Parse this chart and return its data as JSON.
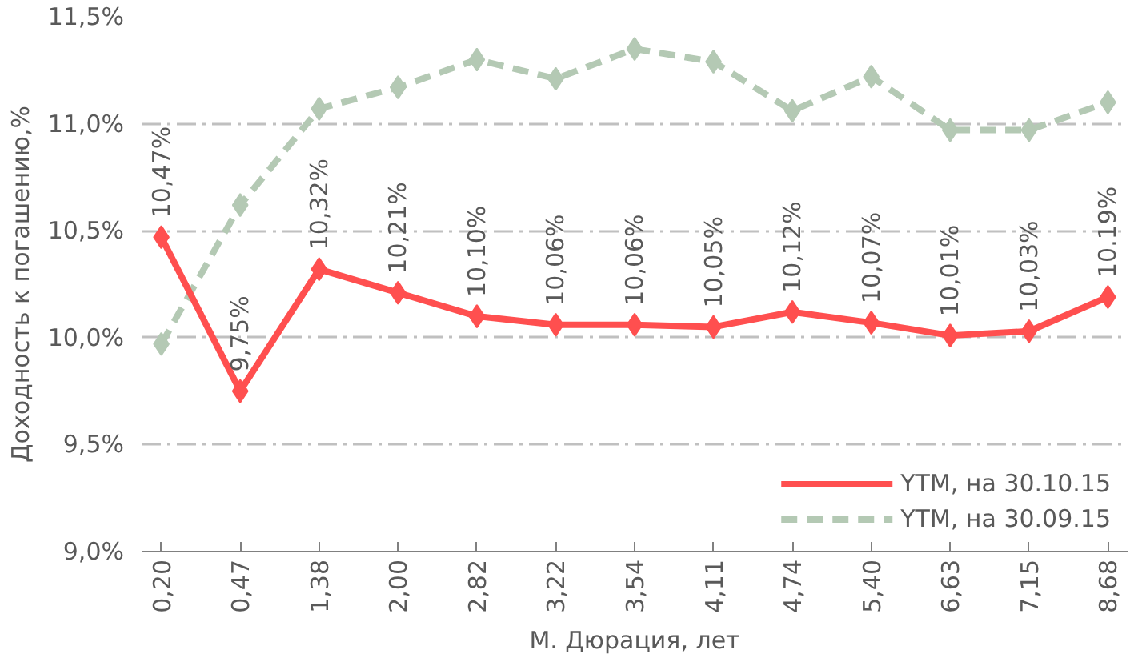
{
  "chart_data": {
    "type": "line",
    "xlabel": "М. Дюрация, лет",
    "ylabel": "Доходность к погашению,%",
    "categories": [
      "0,20",
      "0,47",
      "1,38",
      "2,00",
      "2,82",
      "3,22",
      "3,54",
      "4,11",
      "4,74",
      "5,40",
      "6,63",
      "7,15",
      "8,68"
    ],
    "series": [
      {
        "name": "YTM, на 30.10.15",
        "color": "#ff4f4f",
        "line_style": "solid",
        "values": [
          10.47,
          9.75,
          10.32,
          10.21,
          10.1,
          10.06,
          10.06,
          10.05,
          10.12,
          10.07,
          10.01,
          10.03,
          10.19
        ],
        "value_labels": [
          "10,47%",
          "9,75%",
          "10,32%",
          "10,21%",
          "10,10%",
          "10,06%",
          "10,06%",
          "10,05%",
          "10,12%",
          "10,07%",
          "10,01%",
          "10,03%",
          "10.19%"
        ]
      },
      {
        "name": "YTM, на 30.09.15",
        "color": "#b4c9b4",
        "line_style": "dashed",
        "values": [
          9.97,
          10.62,
          11.07,
          11.17,
          11.3,
          11.21,
          11.35,
          11.29,
          11.06,
          11.22,
          10.97,
          10.97,
          11.1
        ]
      }
    ],
    "ylim": [
      9.0,
      11.5
    ],
    "yticks": [
      {
        "value": 9.0,
        "label": "9,0%"
      },
      {
        "value": 9.5,
        "label": "9,5%"
      },
      {
        "value": 10.0,
        "label": "10,0%"
      },
      {
        "value": 10.5,
        "label": "10,5%"
      },
      {
        "value": 11.0,
        "label": "11,0%"
      },
      {
        "value": 11.5,
        "label": "11,5%"
      }
    ],
    "grid": "y",
    "legend": "bottom right",
    "marker": "diamond"
  }
}
